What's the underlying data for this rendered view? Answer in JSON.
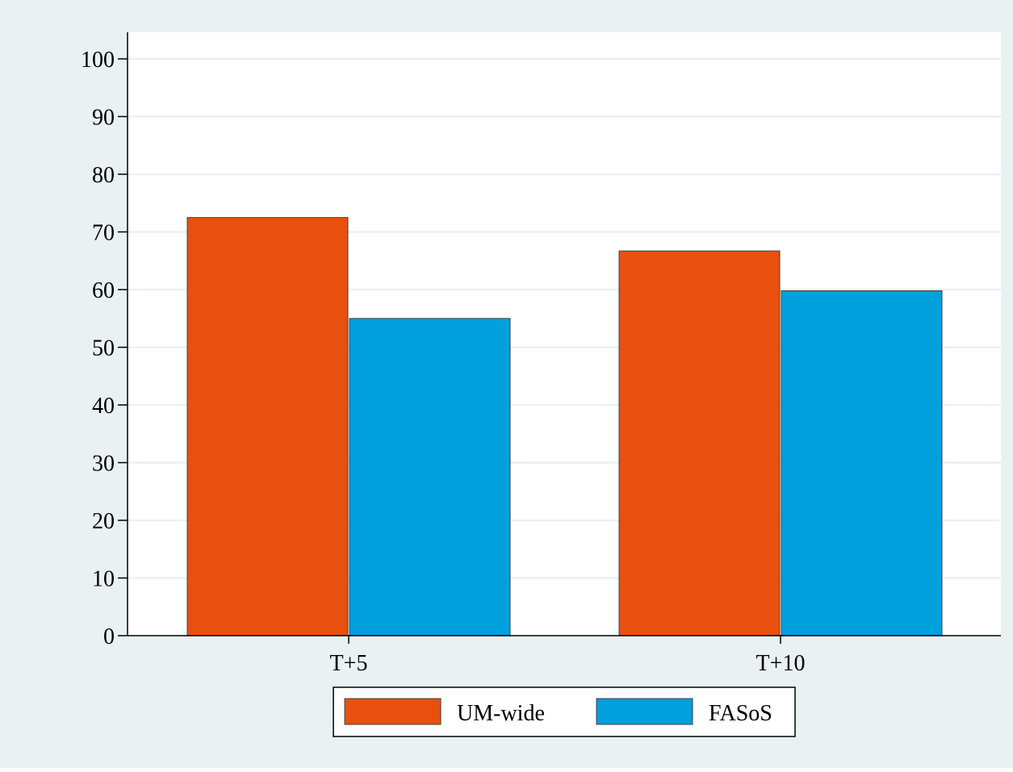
{
  "chart_data": {
    "type": "bar",
    "categories": [
      "T+5",
      "T+10"
    ],
    "series": [
      {
        "name": "UM-wide",
        "values": [
          72.5,
          66.7
        ],
        "color": "#e8500f"
      },
      {
        "name": "FASoS",
        "values": [
          55.0,
          59.8
        ],
        "color": "#00a0dc"
      }
    ],
    "ylim": [
      0,
      100
    ],
    "yticks": [
      "0",
      "10",
      "20",
      "30",
      "40",
      "50",
      "60",
      "70",
      "80",
      "90",
      "100"
    ],
    "grid": true,
    "legend_position": "bottom-center",
    "title": "",
    "xlabel": "",
    "ylabel": ""
  },
  "colors": {
    "background": "#eaf1f3",
    "plot_area": "#ffffff",
    "gridline": "#eaf1f3"
  }
}
